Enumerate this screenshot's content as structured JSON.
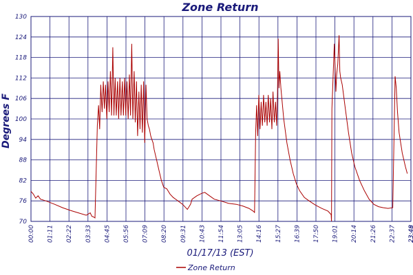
{
  "chart_data": {
    "type": "line",
    "title": "Zone Return",
    "xlabel": "01/17/13 (EST)",
    "ylabel": "Degrees F",
    "ylim": [
      70,
      130
    ],
    "yticks": [
      "70",
      "76",
      "82",
      "88",
      "94",
      "100",
      "106",
      "112",
      "118",
      "124",
      "130"
    ],
    "xticks": [
      "00:00",
      "01:11",
      "02:22",
      "03:33",
      "04:45",
      "05:56",
      "07:09",
      "08:20",
      "09:31",
      "10:43",
      "11:54",
      "13:05",
      "14:16",
      "15:27",
      "16:39",
      "17:50",
      "19:01",
      "20:14",
      "21:26",
      "22:37",
      "23:48",
      "23:49"
    ],
    "grid": true,
    "legend_position": "bottom",
    "colors": {
      "series": "#aa0000",
      "grid": "#1a1a7a",
      "text": "#1a1a7a"
    },
    "series": [
      {
        "name": "Zone Return",
        "x_hours": [
          0,
          0.15,
          0.3,
          0.45,
          0.6,
          0.8,
          1.0,
          1.5,
          2.0,
          2.5,
          3.0,
          3.5,
          3.75,
          3.85,
          3.95,
          4.05,
          4.2,
          4.28,
          4.35,
          4.42,
          4.5,
          4.58,
          4.65,
          4.72,
          4.8,
          4.88,
          4.95,
          5.03,
          5.1,
          5.18,
          5.25,
          5.33,
          5.4,
          5.48,
          5.55,
          5.63,
          5.7,
          5.78,
          5.85,
          5.93,
          6.0,
          6.08,
          6.15,
          6.23,
          6.3,
          6.38,
          6.45,
          6.53,
          6.6,
          6.68,
          6.75,
          6.83,
          6.9,
          6.98,
          7.05,
          7.13,
          7.2,
          7.28,
          7.35,
          7.43,
          7.5,
          7.58,
          7.65,
          7.73,
          7.8,
          7.95,
          8.1,
          8.25,
          8.4,
          8.6,
          8.8,
          9.0,
          9.3,
          9.6,
          9.9,
          10.1,
          10.2,
          10.5,
          10.8,
          11.0,
          11.3,
          11.6,
          12.0,
          12.5,
          13.0,
          13.4,
          13.8,
          14.0,
          14.12,
          14.15,
          14.22,
          14.28,
          14.35,
          14.42,
          14.5,
          14.57,
          14.65,
          14.72,
          14.8,
          14.87,
          14.95,
          15.02,
          15.1,
          15.17,
          15.25,
          15.32,
          15.4,
          15.48,
          15.55,
          15.6,
          15.65,
          15.7,
          15.75,
          15.82,
          16.0,
          16.2,
          16.4,
          16.6,
          16.8,
          17.0,
          17.3,
          17.6,
          18.0,
          18.4,
          18.8,
          19.0,
          19.02,
          19.05,
          19.2,
          19.3,
          19.35,
          19.42,
          19.5,
          19.55,
          19.6,
          19.7,
          19.9,
          20.1,
          20.3,
          20.5,
          20.8,
          21.1,
          21.4,
          21.7,
          22.0,
          22.3,
          22.6,
          22.9,
          23.05,
          23.12,
          23.2,
          23.3,
          23.5,
          23.7,
          23.82
        ],
        "values": [
          78.8,
          78.0,
          76.8,
          77.5,
          76.5,
          76.2,
          75.9,
          75.0,
          74.0,
          73.2,
          72.5,
          71.8,
          72.5,
          71.5,
          71.3,
          71.0,
          98.0,
          104.0,
          97.0,
          110.0,
          102.0,
          111.0,
          103.0,
          110.0,
          100.0,
          111.0,
          102.0,
          114.0,
          101.0,
          121.0,
          101.0,
          112.0,
          101.0,
          111.0,
          100.0,
          112.0,
          101.0,
          111.0,
          101.0,
          112.0,
          101.0,
          111.0,
          100.0,
          113.0,
          101.0,
          122.0,
          100.0,
          114.0,
          99.0,
          111.0,
          95.0,
          108.0,
          97.0,
          110.0,
          96.0,
          111.0,
          93.0,
          110.0,
          100.0,
          98.0,
          97.0,
          95.0,
          94.0,
          93.0,
          91.0,
          88.0,
          85.0,
          82.0,
          80.0,
          79.5,
          78.0,
          77.0,
          76.0,
          75.0,
          73.5,
          75.0,
          76.5,
          77.5,
          78.2,
          78.5,
          77.5,
          76.5,
          76.0,
          75.3,
          75.0,
          74.5,
          73.8,
          73.2,
          72.8,
          72.5,
          96.0,
          104.0,
          95.0,
          107.0,
          97.0,
          105.0,
          98.0,
          107.0,
          99.0,
          105.0,
          98.0,
          107.0,
          99.0,
          106.0,
          97.0,
          108.0,
          99.0,
          105.0,
          98.0,
          107.0,
          123.5,
          109.0,
          114.0,
          109.0,
          100.0,
          93.0,
          88.0,
          84.0,
          81.0,
          79.0,
          77.0,
          76.0,
          74.8,
          73.8,
          73.0,
          72.0,
          70.0,
          103.0,
          122.0,
          108.0,
          113.0,
          116.0,
          124.5,
          114.0,
          112.0,
          110.0,
          103.0,
          96.0,
          90.0,
          86.0,
          82.0,
          79.0,
          76.5,
          75.0,
          74.3,
          74.0,
          73.8,
          74.0,
          112.5,
          109.0,
          102.0,
          96.0,
          90.0,
          86.0,
          84.0
        ]
      }
    ]
  }
}
